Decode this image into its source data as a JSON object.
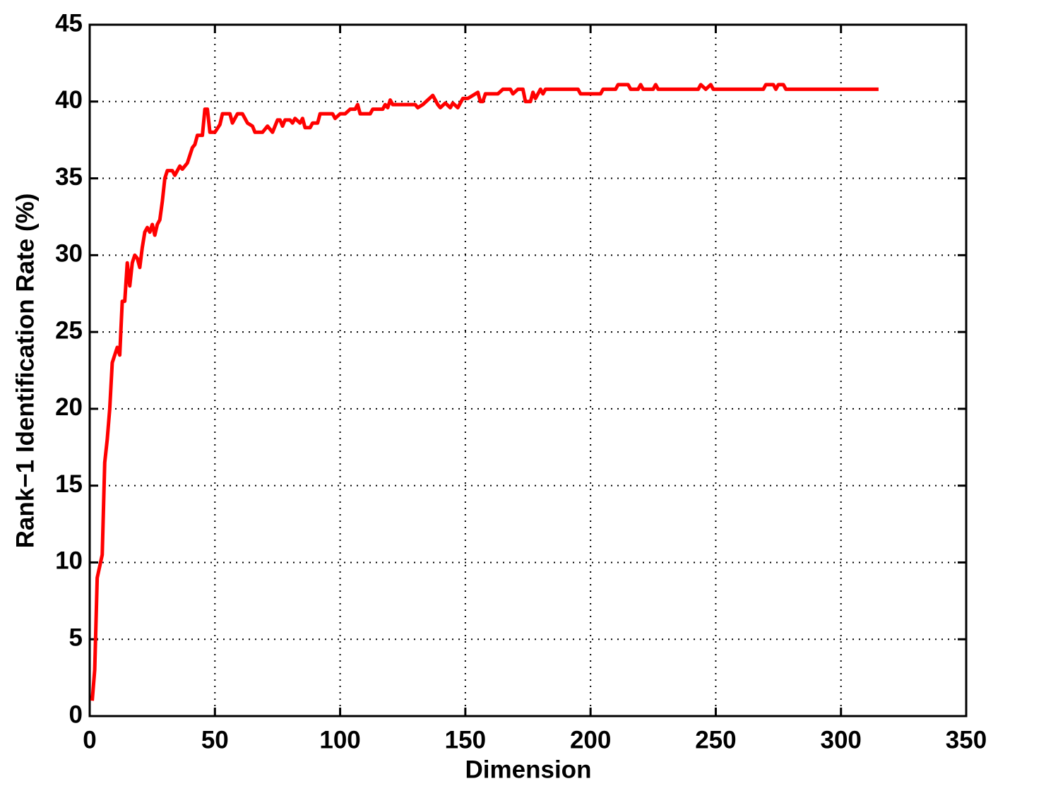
{
  "chart_data": {
    "type": "line",
    "xlabel": "Dimension",
    "ylabel": "Rank−1 Identification Rate (%)",
    "xlim": [
      0,
      350
    ],
    "xticks": [
      0,
      50,
      100,
      150,
      200,
      250,
      300,
      350
    ],
    "ylim": [
      0,
      45
    ],
    "yticks": [
      0,
      5,
      10,
      15,
      20,
      25,
      30,
      35,
      40,
      45
    ],
    "grid": true,
    "x": [
      1,
      2,
      3,
      5,
      6,
      7,
      8,
      9,
      10,
      11,
      12,
      13,
      14,
      15,
      16,
      17,
      18,
      19,
      20,
      21,
      22,
      23,
      24,
      25,
      26,
      27,
      28,
      29,
      30,
      31,
      33,
      34,
      36,
      37,
      39,
      40,
      41,
      42,
      43,
      45,
      46,
      47,
      48,
      50,
      52,
      53,
      56,
      57,
      59,
      61,
      63,
      65,
      66,
      69,
      71,
      73,
      75,
      76,
      77,
      78,
      80,
      81,
      82,
      84,
      85,
      86,
      88,
      89,
      91,
      92,
      97,
      98,
      100,
      102,
      104,
      106,
      107,
      108,
      112,
      113,
      117,
      118,
      119,
      120,
      121,
      130,
      131,
      133,
      135,
      137,
      139,
      140,
      142,
      144,
      145,
      147,
      149,
      151,
      153,
      155,
      156,
      157,
      158,
      163,
      165,
      168,
      169,
      171,
      173,
      174,
      176,
      177,
      178,
      180,
      181,
      182,
      195,
      196,
      204,
      205,
      210,
      211,
      215,
      216,
      219,
      220,
      221,
      225,
      226,
      227,
      243,
      244,
      246,
      248,
      249,
      269,
      270,
      273,
      274,
      275,
      277,
      278,
      315
    ],
    "series": [
      {
        "color": "#ff0000",
        "values": [
          1,
          3,
          9,
          10.5,
          16.5,
          18,
          20,
          23,
          23.5,
          24,
          23.5,
          27,
          27,
          29.5,
          28,
          29.5,
          30,
          29.8,
          29.2,
          30.5,
          31.5,
          31.8,
          31.5,
          32,
          31.3,
          32,
          32.3,
          33.5,
          35,
          35.5,
          35.5,
          35.2,
          35.8,
          35.6,
          36,
          36.5,
          37,
          37.2,
          37.8,
          37.8,
          39.5,
          39.5,
          38,
          38,
          38.5,
          39.2,
          39.2,
          38.6,
          39.2,
          39.2,
          38.6,
          38.4,
          38,
          38,
          38.4,
          38,
          38.8,
          38.8,
          38.4,
          38.8,
          38.8,
          38.6,
          38.9,
          38.6,
          38.9,
          38.3,
          38.3,
          38.6,
          38.6,
          39.2,
          39.2,
          38.9,
          39.2,
          39.2,
          39.5,
          39.5,
          39.8,
          39.2,
          39.2,
          39.5,
          39.5,
          39.8,
          39.6,
          40.1,
          39.8,
          39.8,
          39.6,
          39.8,
          40.1,
          40.4,
          39.8,
          39.6,
          39.9,
          39.6,
          39.9,
          39.6,
          40.2,
          40.2,
          40.4,
          40.6,
          40,
          40,
          40.5,
          40.5,
          40.8,
          40.8,
          40.5,
          40.8,
          40.8,
          40,
          40,
          40.6,
          40.2,
          40.8,
          40.5,
          40.8,
          40.8,
          40.5,
          40.5,
          40.8,
          40.8,
          41.1,
          41.1,
          40.8,
          40.8,
          41.1,
          40.8,
          40.8,
          41.1,
          40.8,
          40.8,
          41.1,
          40.8,
          41.1,
          40.8,
          40.8,
          41.1,
          41.1,
          40.8,
          41.1,
          41.1,
          40.8,
          40.8
        ]
      }
    ]
  }
}
